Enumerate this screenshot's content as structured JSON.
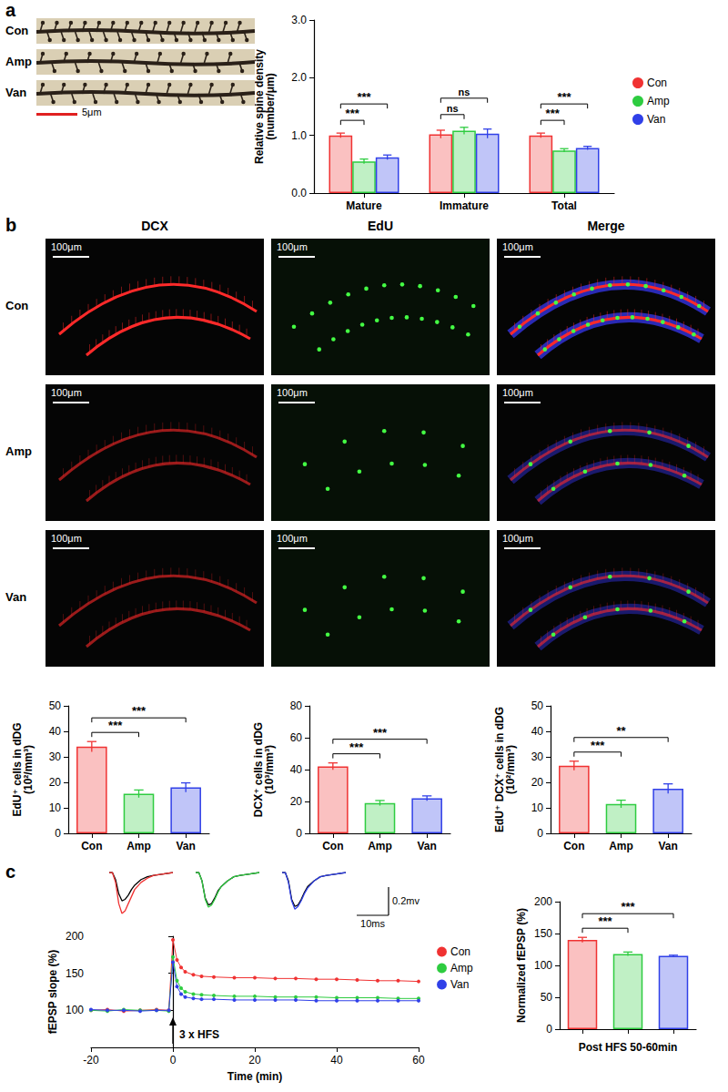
{
  "panel_labels": [
    "a",
    "b",
    "c"
  ],
  "spine_images": {
    "rows": [
      "Con",
      "Amp",
      "Van"
    ],
    "scale_bar": "5μm"
  },
  "section_images": {
    "columns": [
      "DCX",
      "EdU",
      "Merge"
    ],
    "rows": [
      "Con",
      "Amp",
      "Van"
    ],
    "scale_bar": "100μm"
  },
  "chart_data": [
    {
      "type": "bar",
      "ylabel": "Relative spine density\n(number/μm)",
      "categories": [
        "Mature",
        "Immature",
        "Total"
      ],
      "series": [
        {
          "name": "Con",
          "color": "#f03232",
          "values": [
            1.0,
            1.02,
            1.0
          ],
          "errors": [
            0.04,
            0.07,
            0.04
          ]
        },
        {
          "name": "Amp",
          "color": "#2ecc40",
          "values": [
            0.55,
            1.08,
            0.74
          ],
          "errors": [
            0.04,
            0.06,
            0.03
          ]
        },
        {
          "name": "Van",
          "color": "#3040e8",
          "values": [
            0.62,
            1.03,
            0.78
          ],
          "errors": [
            0.04,
            0.08,
            0.03
          ]
        }
      ],
      "ylim": [
        0,
        3
      ],
      "yticks": [
        {
          "value": 0,
          "label": "0.0"
        },
        {
          "value": 1,
          "label": "1.0"
        },
        {
          "value": 2,
          "label": "2.0"
        },
        {
          "value": 3,
          "label": "3.0"
        }
      ],
      "legend": "right",
      "significance": [
        {
          "category": 0,
          "pair": [
            0,
            1
          ],
          "label": "***"
        },
        {
          "category": 0,
          "pair": [
            0,
            2
          ],
          "label": "***"
        },
        {
          "category": 1,
          "pair": [
            0,
            1
          ],
          "label": "ns"
        },
        {
          "category": 1,
          "pair": [
            0,
            2
          ],
          "label": "ns"
        },
        {
          "category": 2,
          "pair": [
            0,
            1
          ],
          "label": "***"
        },
        {
          "category": 2,
          "pair": [
            0,
            2
          ],
          "label": "***"
        }
      ]
    },
    {
      "type": "bar",
      "ylabel": "EdU⁺ cells in dDG\n(10²/mm³)",
      "categories": [
        "Con",
        "Amp",
        "Van"
      ],
      "values": [
        34,
        15.5,
        18
      ],
      "errors": [
        2,
        1.5,
        1.8
      ],
      "colors": [
        "#f03232",
        "#2ecc40",
        "#3040e8"
      ],
      "ylim": [
        0,
        50
      ],
      "yticks": [
        0,
        10,
        20,
        30,
        40,
        50
      ],
      "significance": [
        {
          "pair": [
            0,
            1
          ],
          "label": "***"
        },
        {
          "pair": [
            0,
            2
          ],
          "label": "***"
        }
      ]
    },
    {
      "type": "bar",
      "ylabel": "DCX⁺ cells in dDG\n(10³/mm³)",
      "categories": [
        "Con",
        "Amp",
        "Van"
      ],
      "values": [
        42,
        19,
        22
      ],
      "errors": [
        2.2,
        1.6,
        1.5
      ],
      "colors": [
        "#f03232",
        "#2ecc40",
        "#3040e8"
      ],
      "ylim": [
        0,
        80
      ],
      "yticks": [
        0,
        20,
        40,
        60,
        80
      ],
      "significance": [
        {
          "pair": [
            0,
            1
          ],
          "label": "***"
        },
        {
          "pair": [
            0,
            2
          ],
          "label": "***"
        }
      ]
    },
    {
      "type": "bar",
      "ylabel": "EdU⁺ DCX⁺ cells in dDG\n(10²/mm³)",
      "categories": [
        "Con",
        "Amp",
        "Van"
      ],
      "values": [
        26.5,
        11.5,
        17.5
      ],
      "errors": [
        1.8,
        1.5,
        1.9
      ],
      "colors": [
        "#f03232",
        "#2ecc40",
        "#3040e8"
      ],
      "ylim": [
        0,
        50
      ],
      "yticks": [
        0,
        10,
        20,
        30,
        40,
        50
      ],
      "significance": [
        {
          "pair": [
            0,
            1
          ],
          "label": "***"
        },
        {
          "pair": [
            0,
            2
          ],
          "label": "**"
        }
      ]
    },
    {
      "type": "line",
      "tick_labels": false,
      "x": [
        0,
        1,
        2,
        3,
        4,
        5,
        6,
        7,
        8,
        10,
        12,
        14,
        17,
        20
      ],
      "groups": [
        {
          "series": [
            {
              "color": "#000000",
              "values": [
                0,
                0,
                -0.05,
                -0.15,
                -0.2,
                -0.19,
                -0.16,
                -0.12,
                -0.09,
                -0.05,
                -0.03,
                -0.02,
                -0.01,
                0
              ]
            },
            {
              "color": "#f03232",
              "values": [
                0,
                0,
                -0.07,
                -0.22,
                -0.29,
                -0.27,
                -0.22,
                -0.17,
                -0.12,
                -0.07,
                -0.04,
                -0.02,
                -0.01,
                0
              ]
            }
          ]
        },
        {
          "series": [
            {
              "color": "#000000",
              "values": [
                0,
                0,
                -0.06,
                -0.18,
                -0.23,
                -0.22,
                -0.18,
                -0.13,
                -0.1,
                -0.06,
                -0.03,
                -0.02,
                -0.01,
                0
              ]
            },
            {
              "color": "#2ecc40",
              "values": [
                0,
                0,
                -0.06,
                -0.19,
                -0.245,
                -0.23,
                -0.19,
                -0.14,
                -0.1,
                -0.06,
                -0.03,
                -0.02,
                -0.01,
                0
              ]
            }
          ]
        },
        {
          "series": [
            {
              "color": "#000000",
              "values": [
                0,
                0,
                -0.06,
                -0.19,
                -0.24,
                -0.23,
                -0.19,
                -0.14,
                -0.1,
                -0.06,
                -0.03,
                -0.02,
                -0.01,
                0
              ]
            },
            {
              "color": "#3040e8",
              "values": [
                0,
                0,
                -0.07,
                -0.2,
                -0.26,
                -0.24,
                -0.2,
                -0.15,
                -0.11,
                -0.06,
                -0.03,
                -0.02,
                -0.01,
                0
              ]
            }
          ]
        }
      ],
      "scale_bar": {
        "x": {
          "value": 10,
          "label": "10ms"
        },
        "y": {
          "value": 0.2,
          "label": "0.2mv"
        }
      }
    },
    {
      "type": "line",
      "xlabel": "Time (min)",
      "ylabel": "fEPSP slope (%)",
      "x": [
        -20,
        -16,
        -12,
        -8,
        -4,
        -1,
        0,
        1,
        2,
        3,
        5,
        7,
        10,
        15,
        20,
        25,
        30,
        35,
        40,
        45,
        50,
        55,
        60
      ],
      "series": [
        {
          "name": "Con",
          "color": "#f03232",
          "values": [
            100,
            101,
            99,
            100,
            101,
            100,
            195,
            168,
            158,
            152,
            148,
            146,
            145,
            144,
            144,
            143,
            143,
            142,
            142,
            141,
            140,
            140,
            139
          ]
        },
        {
          "name": "Amp",
          "color": "#2ecc40",
          "values": [
            100,
            99,
            101,
            100,
            100,
            99,
            172,
            140,
            130,
            125,
            122,
            121,
            120,
            119,
            119,
            118,
            118,
            118,
            117,
            117,
            117,
            116,
            116
          ]
        },
        {
          "name": "Van",
          "color": "#3040e8",
          "values": [
            101,
            100,
            100,
            99,
            100,
            100,
            165,
            132,
            122,
            118,
            116,
            115,
            115,
            114,
            114,
            114,
            114,
            113,
            113,
            113,
            113,
            113,
            113
          ]
        }
      ],
      "xlim": [
        -20,
        60
      ],
      "xticks": [
        -20,
        0,
        20,
        40,
        60
      ],
      "ylim": [
        50,
        200
      ],
      "yticks": [
        100,
        150,
        200
      ],
      "legend": "upper right",
      "marker": "circle",
      "annotations": [
        {
          "x": 0,
          "text": "3 x HFS"
        }
      ]
    },
    {
      "type": "bar",
      "xlabel": "Post HFS 50-60min",
      "ylabel": "Normalized fEPSP (%)",
      "categories": [
        null,
        null,
        null
      ],
      "values": [
        140,
        118,
        115
      ],
      "errors": [
        4,
        3,
        1
      ],
      "colors": [
        "#f03232",
        "#2ecc40",
        "#3040e8"
      ],
      "ylim": [
        0,
        200
      ],
      "yticks": [
        0,
        50,
        100,
        150,
        200
      ],
      "significance": [
        {
          "pair": [
            0,
            1
          ],
          "label": "***"
        },
        {
          "pair": [
            0,
            2
          ],
          "label": "***"
        }
      ]
    }
  ]
}
